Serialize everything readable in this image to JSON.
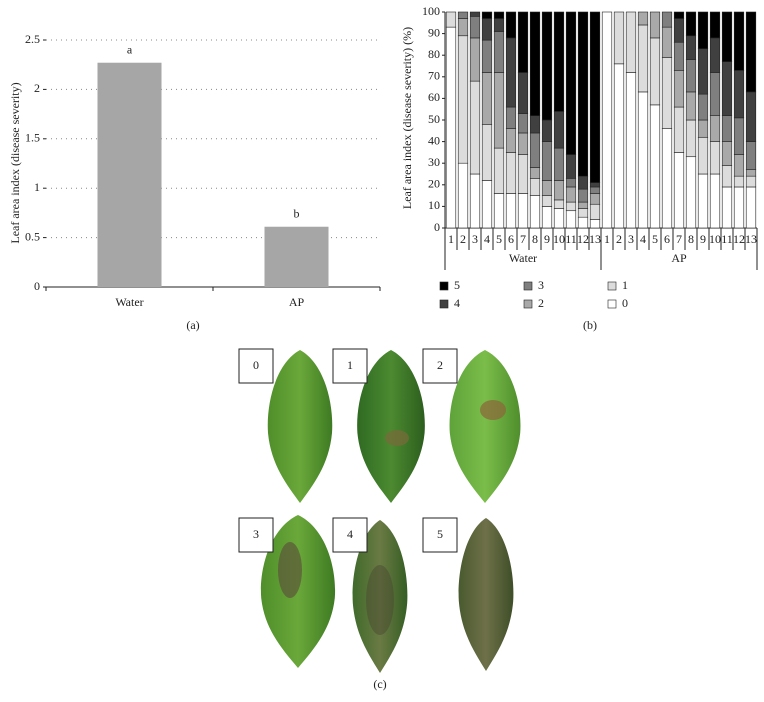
{
  "chart_data": [
    {
      "type": "bar",
      "ylabel": "Leaf area index (disease severity)",
      "categories": [
        "Water",
        "AP"
      ],
      "values": [
        2.27,
        0.61
      ],
      "annotations": [
        "a",
        "b"
      ],
      "color": "#a6a6a6",
      "ylim": [
        0,
        2.5
      ],
      "yticks": [
        0,
        0.5,
        1,
        1.5,
        2,
        2.5
      ],
      "grid": true
    },
    {
      "type": "stacked_bar",
      "ylabel": "Leaf area index (disease severity) (%)",
      "groups": [
        "Water",
        "AP"
      ],
      "categories": [
        "1",
        "2",
        "3",
        "4",
        "5",
        "6",
        "7",
        "8",
        "9",
        "10",
        "11",
        "12",
        "13",
        "1",
        "2",
        "3",
        "4",
        "5",
        "6",
        "7",
        "8",
        "9",
        "10",
        "11",
        "12",
        "13"
      ],
      "series": [
        {
          "name": "0",
          "color": "#ffffff",
          "values": [
            93,
            30,
            25,
            22,
            16,
            16,
            16,
            15,
            10,
            9,
            8,
            5,
            4,
            100,
            76,
            72,
            63,
            57,
            46,
            35,
            33,
            25,
            25,
            19,
            19,
            19
          ]
        },
        {
          "name": "1",
          "color": "#dcdcdc",
          "values": [
            7,
            59,
            43,
            26,
            21,
            19,
            18,
            8,
            5,
            4,
            4,
            4,
            7,
            0,
            24,
            28,
            31,
            31,
            33,
            21,
            17,
            17,
            15,
            10,
            5,
            5
          ]
        },
        {
          "name": "2",
          "color": "#a9a9a9",
          "values": [
            0,
            8,
            20,
            24,
            35,
            11,
            10,
            5,
            7,
            9,
            7,
            3,
            5,
            0,
            0,
            0,
            6,
            12,
            14,
            17,
            13,
            8,
            12,
            11,
            10,
            3
          ]
        },
        {
          "name": "3",
          "color": "#7f7f7f",
          "values": [
            0,
            3,
            10,
            15,
            19,
            10,
            9,
            16,
            18,
            15,
            4,
            6,
            3,
            0,
            0,
            0,
            0,
            0,
            7,
            13,
            15,
            12,
            20,
            12,
            17,
            13
          ]
        },
        {
          "name": "4",
          "color": "#404040",
          "values": [
            0,
            0,
            2,
            10,
            6,
            32,
            19,
            8,
            10,
            17,
            11,
            6,
            2,
            0,
            0,
            0,
            0,
            0,
            0,
            11,
            11,
            21,
            16,
            25,
            22,
            23
          ]
        },
        {
          "name": "5",
          "color": "#000000",
          "values": [
            0,
            0,
            0,
            3,
            3,
            12,
            28,
            48,
            50,
            46,
            66,
            76,
            79,
            0,
            0,
            0,
            0,
            0,
            0,
            3,
            11,
            17,
            12,
            23,
            27,
            37
          ]
        }
      ],
      "ylim": [
        0,
        100
      ],
      "yticks": [
        0,
        10,
        20,
        30,
        40,
        50,
        60,
        70,
        80,
        90,
        100
      ]
    }
  ],
  "panels": [
    "(a)",
    "(b)",
    "(c)"
  ],
  "leaf_scale": [
    "0",
    "1",
    "2",
    "3",
    "4",
    "5"
  ]
}
